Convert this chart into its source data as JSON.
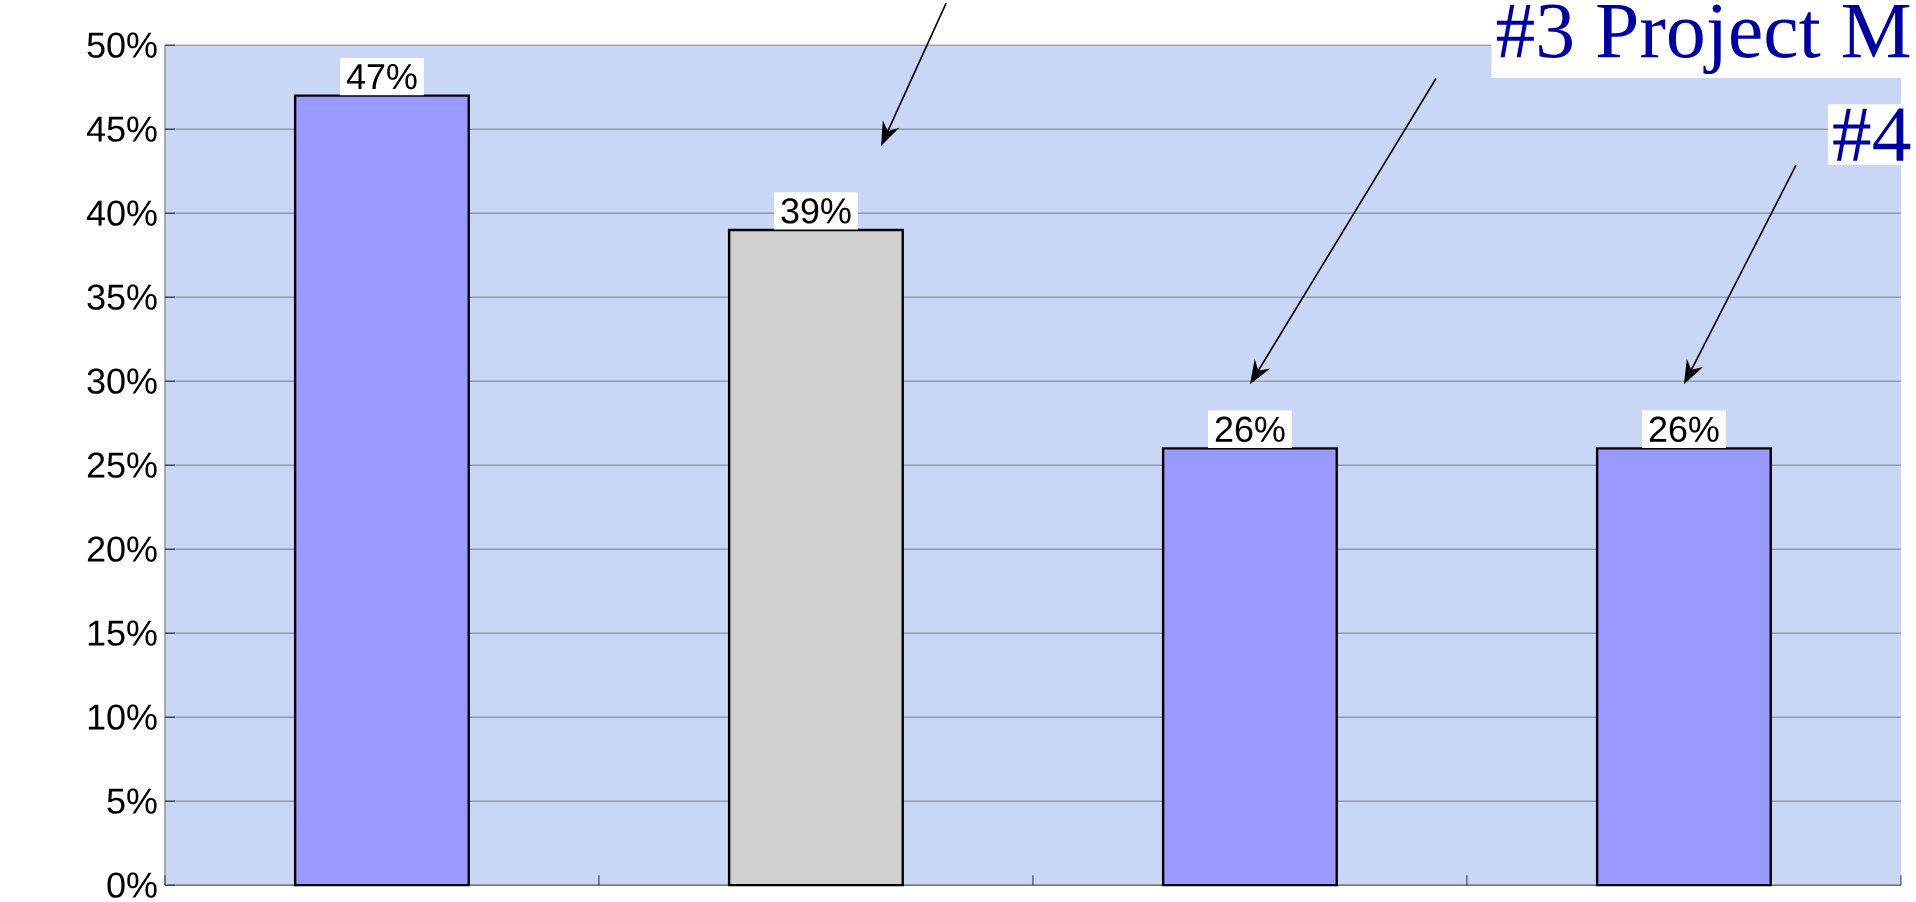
{
  "chart_data": {
    "type": "bar",
    "categories": [
      null,
      null,
      null,
      null
    ],
    "values": [
      47,
      39,
      26,
      26
    ],
    "colors": [
      "#9999ff",
      "#d0d0d0",
      "#9999ff",
      "#9999ff"
    ],
    "value_labels": [
      "47%",
      "39%",
      "26%",
      "26%"
    ],
    "ylim": [
      0,
      50
    ],
    "yticks": [
      {
        "value": 0,
        "label": "0%"
      },
      {
        "value": 5,
        "label": "5%"
      },
      {
        "value": 10,
        "label": "10%"
      },
      {
        "value": 15,
        "label": "15%"
      },
      {
        "value": 20,
        "label": "20%"
      },
      {
        "value": 25,
        "label": "25%"
      },
      {
        "value": 30,
        "label": "30%"
      },
      {
        "value": 35,
        "label": "35%"
      },
      {
        "value": 40,
        "label": "40%"
      },
      {
        "value": 45,
        "label": "45%"
      },
      {
        "value": 50,
        "label": "50%"
      }
    ],
    "grid": "y",
    "annotations": [
      "#3 Project M",
      "#4"
    ]
  }
}
